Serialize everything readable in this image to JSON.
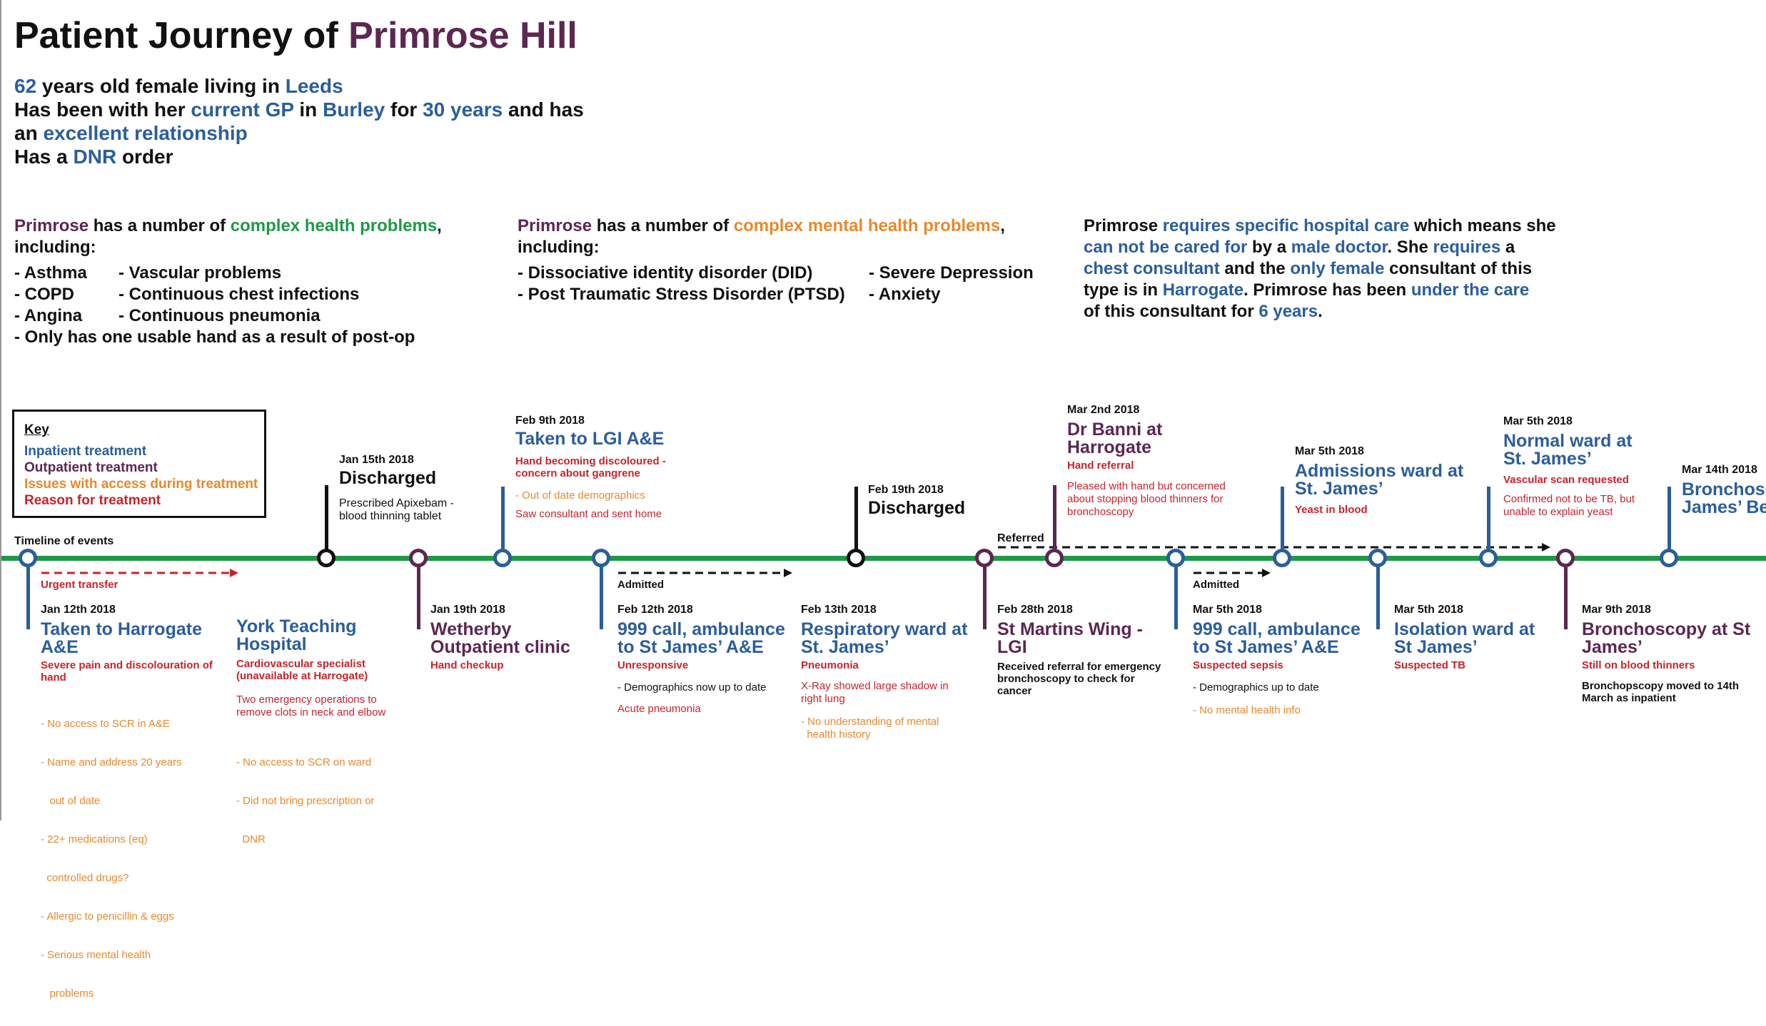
{
  "header": {
    "title_prefix": "Patient Journey of ",
    "patient_name": "Primrose Hill"
  },
  "intro": {
    "age": "62",
    "age_text": " years old female living in ",
    "city": "Leeds",
    "gp_prefix": "Has been with her ",
    "gp": "current GP",
    "gp_in": " in ",
    "gp_place": "Burley",
    "gp_for": " for ",
    "gp_years": "30 years",
    "gp_and": " and has",
    "rel_prefix": "an ",
    "relationship": "excellent relationship",
    "dnr_prefix": "Has a ",
    "dnr": "DNR",
    "dnr_suffix": " order"
  },
  "health": {
    "name": "Primrose",
    "mid": " has a number of ",
    "highlight": "complex health problems",
    "end": ",",
    "including": "including:",
    "col1": [
      "- Asthma",
      "- COPD",
      "- Angina"
    ],
    "col2": [
      "- Vascular problems",
      "- Continuous chest infections",
      "- Continuous pneumonia"
    ],
    "last": "- Only has one usable hand as a result of post-op"
  },
  "mental": {
    "name": "Primrose",
    "mid": " has a number of ",
    "highlight": "complex mental health problems",
    "end": ",",
    "including": "including:",
    "col1": [
      "- Dissociative identity disorder (DID)",
      "- Post Traumatic Stress Disorder (PTSD)"
    ],
    "col2": [
      "- Severe Depression",
      "- Anxiety"
    ]
  },
  "care": {
    "t1": "Primrose ",
    "h1": "requires specific hospital care",
    "t2": " which means she",
    "h2": "can not be",
    "t3": " ",
    "h3": "cared for",
    "t4": " by a ",
    "h4": "male doctor",
    "t5": ". She ",
    "h5": "requires",
    "t6": " a",
    "h6": "chest consultant",
    "t7": " and the ",
    "h7": "only female",
    "t8": " consultant of this",
    "t9": "type is in ",
    "h9": "Harrogate",
    "t10": ". Primrose has been ",
    "h10": "under the care",
    "t11": "of this consultant for ",
    "h11": "6 years",
    "t12": "."
  },
  "key": {
    "title": "Key",
    "inpatient": "Inpatient treatment",
    "outpatient": "Outpatient treatment",
    "issues": "Issues with access during treatment",
    "reason": "Reason for treatment"
  },
  "timeline_label": "Timeline of events",
  "colors": {
    "inpatient": "#2b5e9b",
    "outpatient": "#5c2751",
    "issues": "#e8892c",
    "reason": "#c8232c",
    "timeline": "#1e9a46",
    "neutral": "#111111"
  },
  "arrows": {
    "urgent": "Urgent transfer",
    "admitted1": "Admitted",
    "referred": "Referred",
    "admitted2": "Admitted"
  },
  "events": {
    "e1": {
      "date": "Jan 12th 2018",
      "title1": "Taken to Harrogate",
      "title2": "A&E",
      "reason": "Severe pain and discolouration of hand",
      "issues": [
        "- No access to SCR in A&E",
        "- Name and address 20 years",
        "   out of date",
        "- 22+ medications (eq)",
        "  controlled drugs?",
        "- Allergic to penicillin & eggs",
        "- Serious mental health",
        "   problems"
      ]
    },
    "e2": {
      "title1": "York Teaching",
      "title2": "Hospital",
      "reason1": "Cardiovascular specialist",
      "reason2": "(unavailable at Harrogate)",
      "note1": "Two emergency operations to",
      "note2": "remove clots in neck and elbow",
      "issues": [
        "- No access to SCR on ward",
        "- Did not bring prescription or",
        "  DNR"
      ]
    },
    "e3": {
      "date": "Jan 15th 2018",
      "title": "Discharged",
      "note1": "Prescribed Apixebam -",
      "note2": "blood thinning tablet"
    },
    "e4": {
      "date": "Jan 19th 2018",
      "title1": "Wetherby",
      "title2": "Outpatient clinic",
      "reason": "Hand checkup"
    },
    "e5": {
      "date": "Feb 9th 2018",
      "title": "Taken to LGI A&E",
      "reason1": "Hand becoming discoloured -",
      "reason2": "concern about gangrene",
      "issue": "- Out of date demographics",
      "issue2": "Saw consultant and sent home"
    },
    "e6": {
      "date": "Feb 12th 2018",
      "title1": "999 call, ambulance",
      "title2": "to St James’ A&E",
      "reason": "Unresponsive",
      "note": "-  Demographics now up to date",
      "reason2": "Acute pneumonia"
    },
    "e7": {
      "date": "Feb 13th 2018",
      "title1": "Respiratory ward at",
      "title2": "St. James’",
      "reason": "Pneumonia",
      "reason2a": "X-Ray showed large shadow in",
      "reason2b": "right lung",
      "issue1": "- No understanding of mental",
      "issue2": "  health history"
    },
    "e8": {
      "date": "Feb 19th 2018",
      "title": "Discharged"
    },
    "e9": {
      "date": "Feb 28th 2018",
      "title1": "St Martins Wing -",
      "title2": "LGI",
      "note1": "Received referral for emergency",
      "note2": "bronchoscopy to check for",
      "note3": "cancer"
    },
    "e10": {
      "date": "Mar 2nd 2018",
      "title1": "Dr Banni at",
      "title2": "Harrogate",
      "reason": "Hand referral",
      "reason2a": "Pleased with hand but concerned",
      "reason2b": "about stopping blood thinners for",
      "reason2c": "bronchoscopy"
    },
    "e11": {
      "date": "Mar 5th 2018",
      "title1": "999 call, ambulance",
      "title2": "to St James’ A&E",
      "reason": "Suspected sepsis",
      "note": "- Demographics up to date",
      "issue": "- No mental health info"
    },
    "e12": {
      "date": "Mar 5th 2018",
      "title1": "Admissions ward at",
      "title2": "St. James’",
      "reason": "Yeast in blood"
    },
    "e13": {
      "date": "Mar 5th 2018",
      "title1": "Isolation ward at",
      "title2": "St James’",
      "reason": "Suspected TB"
    },
    "e14": {
      "date": "Mar 5th 2018",
      "title1": "Normal ward at",
      "title2": "St. James’",
      "reason": "Vascular scan requested",
      "reason2a": "Confirmed not to be TB, but",
      "reason2b": "unable to explain yeast"
    },
    "e15": {
      "date": "Mar 9th 2018",
      "title1": "Bronchoscopy at St",
      "title2": "James’",
      "reason": "Still on blood thinners",
      "note1": "Bronchopscopy moved to 14th",
      "note2": "March as inpatient"
    },
    "e16": {
      "date": "Mar 14th 2018",
      "title1": "Bronchosc",
      "title2": "James’ Be"
    }
  }
}
